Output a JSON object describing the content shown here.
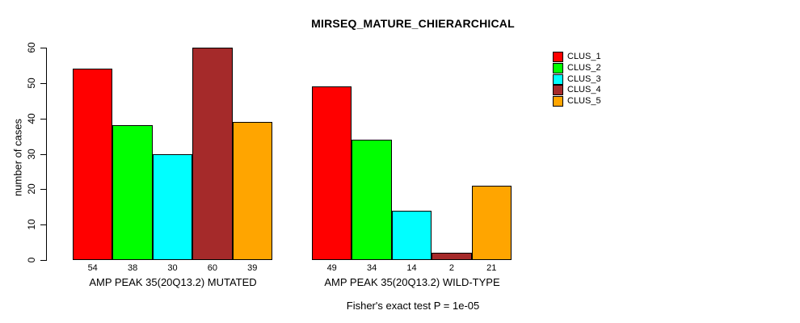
{
  "chart_data": {
    "type": "bar",
    "title": "MIRSEQ_MATURE_CHIERARCHICAL",
    "ylabel": "number of cases",
    "xlabel": "",
    "ylim": [
      0,
      60
    ],
    "yticks": [
      0,
      10,
      20,
      30,
      40,
      50,
      60
    ],
    "grid": false,
    "legend_position": "top-right",
    "categories": [
      "AMP PEAK 35(20Q13.2) MUTATED",
      "AMP PEAK 35(20Q13.2) WILD-TYPE"
    ],
    "series": [
      {
        "name": "CLUS_1",
        "color": "#FF0000",
        "values": [
          54,
          49
        ]
      },
      {
        "name": "CLUS_2",
        "color": "#00FF00",
        "values": [
          38,
          34
        ]
      },
      {
        "name": "CLUS_3",
        "color": "#00FFFF",
        "values": [
          30,
          14
        ]
      },
      {
        "name": "CLUS_4",
        "color": "#A52A2A",
        "values": [
          60,
          2
        ]
      },
      {
        "name": "CLUS_5",
        "color": "#FFA500",
        "values": [
          39,
          21
        ]
      }
    ],
    "bar_value_labels_shown": true,
    "annotation": "Fisher's exact test P = 1e-05"
  },
  "colors": {
    "background": "#FFFFFF",
    "axis": "#000000",
    "text": "#000000"
  }
}
